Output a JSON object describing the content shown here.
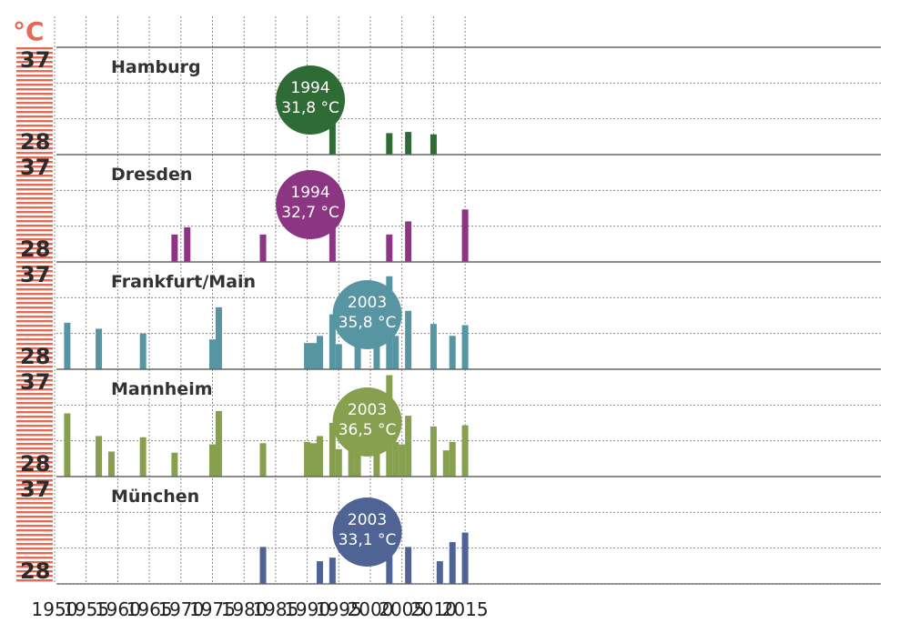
{
  "colors": {
    "scale": "#e36b55",
    "grid": "#8a8a8a",
    "Hamburg": "#2e6b35",
    "Dresden": "#8b3583",
    "Frankfurt/Main": "#5795a3",
    "Mannheim": "#86a04f",
    "München": "#4f6494"
  },
  "chart_data": {
    "type": "bar",
    "unit": "°C",
    "ylim": [
      28,
      37
    ],
    "ytick_labels": [
      "37",
      "28"
    ],
    "x_ticks": [
      1950,
      1955,
      1960,
      1965,
      1970,
      1975,
      1980,
      1985,
      1990,
      1995,
      2000,
      2005,
      2010,
      2015
    ],
    "grid": true,
    "panels": [
      {
        "name": "Hamburg",
        "years": [
          1994,
          2003,
          2006,
          2010
        ],
        "values": [
          31.8,
          29.8,
          29.9,
          29.7
        ],
        "annotation": {
          "year": "1994",
          "value": "31,8 °C",
          "at_year": 1990.5
        }
      },
      {
        "name": "Dresden",
        "years": [
          1969,
          1971,
          1983,
          1994,
          2003,
          2006,
          2015
        ],
        "values": [
          30.3,
          30.9,
          30.3,
          32.7,
          30.3,
          31.4,
          32.4
        ],
        "annotation": {
          "year": "1994",
          "value": "32,7 °C",
          "at_year": 1990.5
        }
      },
      {
        "name": "Frankfurt/Main",
        "years": [
          1952,
          1957,
          1964,
          1975,
          1976,
          1990,
          1991,
          1992,
          1994,
          1995,
          1998,
          2001,
          2003,
          2004,
          2006,
          2010,
          2013,
          2015
        ],
        "values": [
          31.9,
          31.4,
          31.0,
          30.5,
          33.2,
          30.2,
          30.2,
          30.8,
          32.6,
          30.1,
          30.8,
          30.1,
          35.8,
          30.8,
          32.9,
          31.8,
          30.8,
          31.7
        ],
        "annotation": {
          "year": "2003",
          "value": "35,8 °C",
          "at_year": 1999.5
        }
      },
      {
        "name": "Mannheim",
        "years": [
          1952,
          1957,
          1959,
          1964,
          1969,
          1975,
          1976,
          1983,
          1990,
          1991,
          1992,
          1994,
          1995,
          1997,
          1998,
          2001,
          2003,
          2004,
          2005,
          2006,
          2010,
          2012,
          2013,
          2015
        ],
        "values": [
          33.3,
          31.4,
          30.1,
          31.3,
          30.0,
          30.7,
          33.5,
          30.8,
          30.9,
          30.8,
          31.4,
          32.5,
          30.3,
          30.3,
          31.7,
          30.9,
          36.5,
          30.9,
          30.7,
          33.1,
          32.2,
          30.2,
          30.9,
          32.3
        ],
        "annotation": {
          "year": "2003",
          "value": "36,5 °C",
          "at_year": 1999.5
        }
      },
      {
        "name": "München",
        "years": [
          1983,
          1992,
          1994,
          2003,
          2006,
          2011,
          2013,
          2015
        ],
        "values": [
          31.1,
          29.9,
          30.2,
          33.1,
          31.1,
          29.9,
          31.5,
          32.3
        ],
        "annotation": {
          "year": "2003",
          "value": "33,1 °C",
          "at_year": 1999.5
        }
      }
    ]
  }
}
